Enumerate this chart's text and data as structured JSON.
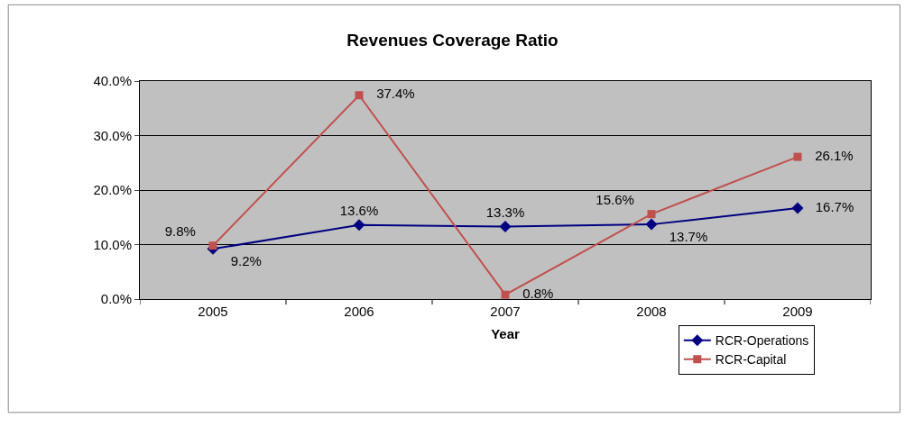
{
  "chart_data": {
    "type": "line",
    "title": "Revenues Coverage Ratio",
    "xlabel": "Year",
    "categories": [
      "2005",
      "2006",
      "2007",
      "2008",
      "2009"
    ],
    "series": [
      {
        "name": "RCR-Operations",
        "color": "#000080",
        "marker": "diamond",
        "values": [
          9.2,
          13.6,
          13.3,
          13.7,
          16.7
        ],
        "value_labels": [
          "9.2%",
          "13.6%",
          "13.3%",
          "13.7%",
          "16.7%"
        ]
      },
      {
        "name": "RCR-Capital",
        "color": "#c0504d",
        "marker": "square",
        "values": [
          9.8,
          37.4,
          0.8,
          15.6,
          26.1
        ],
        "value_labels": [
          "9.8%",
          "37.4%",
          "0.8%",
          "15.6%",
          "26.1%"
        ]
      }
    ],
    "ylim": [
      0,
      40
    ],
    "yticks": [
      {
        "value": 0,
        "label": "0.0%"
      },
      {
        "value": 10,
        "label": "10.0%"
      },
      {
        "value": 20,
        "label": "20.0%"
      },
      {
        "value": 30,
        "label": "30.0%"
      },
      {
        "value": 40,
        "label": "40.0%"
      }
    ],
    "grid": "y",
    "legend": "bottom right"
  }
}
